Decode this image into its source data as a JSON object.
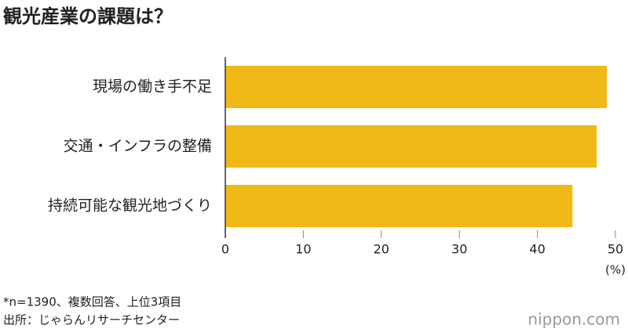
{
  "chart_data": {
    "type": "hbar",
    "title": "観光産業の課題は？",
    "categories": [
      "現場の働き手不足",
      "交通・インフラの整備",
      "持続可能な観光地づくり"
    ],
    "values": [
      48.9,
      47.6,
      44.5
    ],
    "color": "#f0b917",
    "xlim": [
      0,
      50
    ],
    "xticks": [
      0,
      10,
      20,
      30,
      40,
      50
    ],
    "x_unit": "(%)",
    "notes": [
      "*n=1390、複数回答、上位3項目",
      "出所：じゃらんリサーチセンター"
    ],
    "logo": "nippon.com"
  }
}
